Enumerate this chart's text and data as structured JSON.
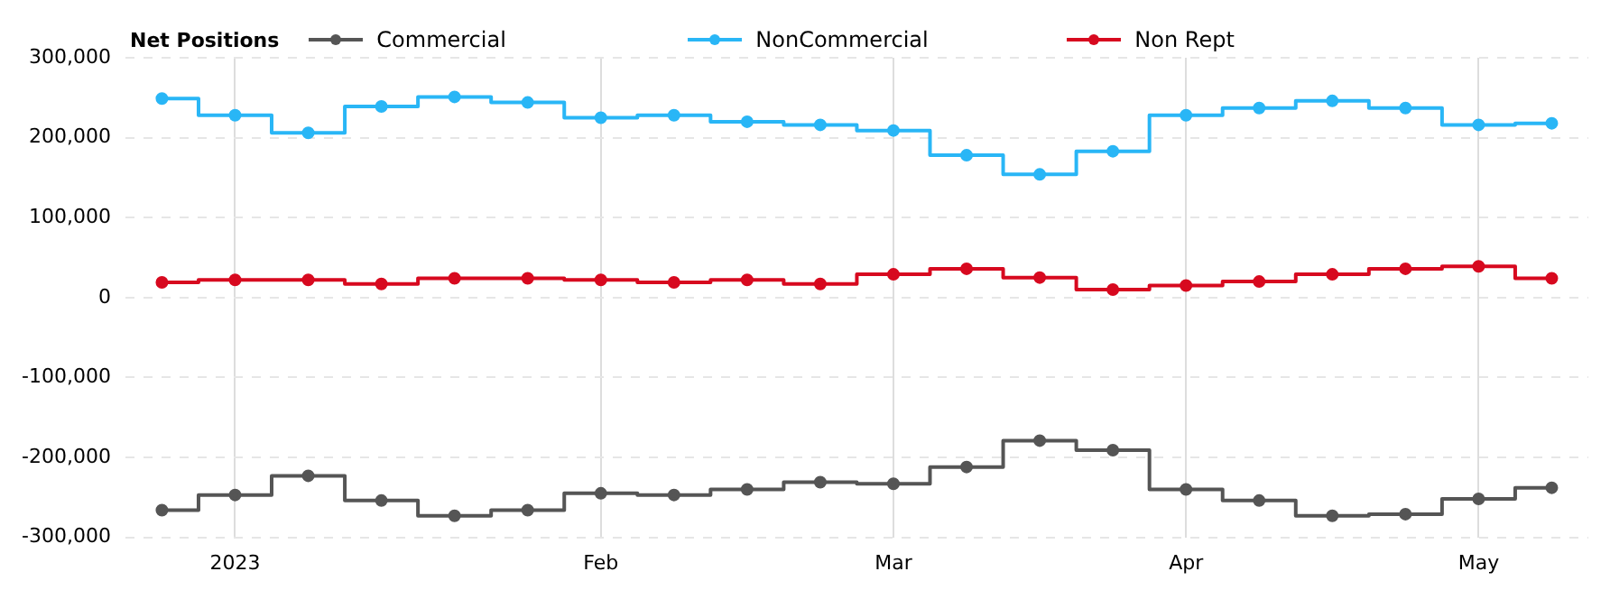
{
  "chart_data": {
    "type": "step",
    "legend_title": "Net Positions",
    "legend": "top",
    "grid": true,
    "marker": "circle",
    "line_style": "solid",
    "categories": [
      null,
      "2023",
      null,
      null,
      null,
      null,
      "Feb",
      null,
      null,
      null,
      "Mar",
      null,
      null,
      null,
      "Apr",
      null,
      null,
      null,
      "May",
      null
    ],
    "ylim": [
      -300000,
      300000
    ],
    "yticks": [
      {
        "value": -300000,
        "label": "-300,000"
      },
      {
        "value": -200000,
        "label": "-200,000"
      },
      {
        "value": -100000,
        "label": "-100,000"
      },
      0,
      {
        "value": 100000,
        "label": "100,000"
      },
      {
        "value": 200000,
        "label": "200,000"
      },
      {
        "value": 300000,
        "label": "300,000"
      }
    ],
    "series": [
      {
        "name": "Commercial",
        "color": "#555555",
        "values": [
          -266000,
          -247000,
          -223000,
          -254000,
          -273000,
          -266000,
          -245000,
          -247000,
          -240000,
          -231000,
          -233000,
          -212000,
          -179000,
          -191000,
          -240000,
          -254000,
          -273000,
          -271000,
          -252000,
          -238000
        ]
      },
      {
        "name": "NonCommercial",
        "color": "#29b6f6",
        "values": [
          249000,
          228000,
          206000,
          239000,
          251000,
          244000,
          225000,
          228000,
          220000,
          216000,
          209000,
          178000,
          154000,
          183000,
          228000,
          237000,
          246000,
          237000,
          216000,
          218000
        ]
      },
      {
        "name": "Non Rept",
        "color": "#d7091f",
        "values": [
          19000,
          22000,
          22000,
          17000,
          24000,
          24000,
          22000,
          19000,
          22000,
          17000,
          29000,
          36000,
          25000,
          10000,
          15000,
          20000,
          29000,
          36000,
          39000,
          24000
        ]
      }
    ]
  }
}
